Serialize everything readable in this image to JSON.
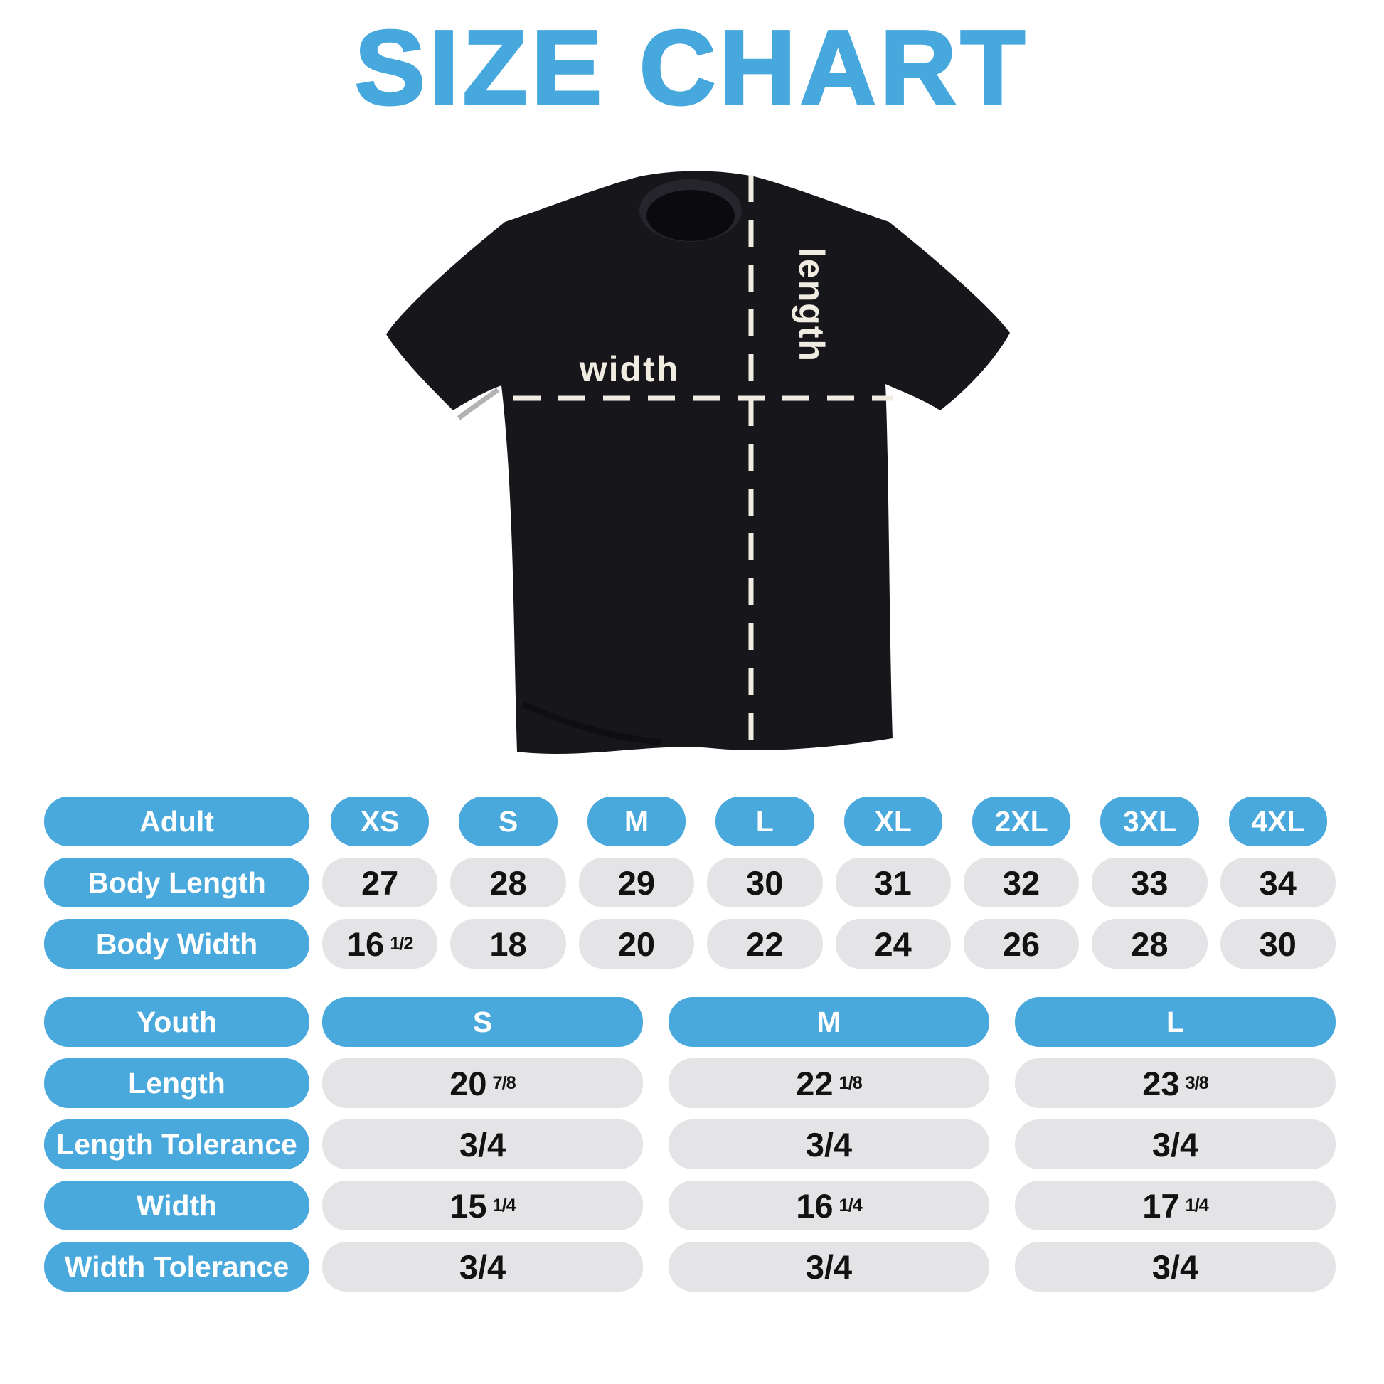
{
  "title": "SIZE CHART",
  "colors": {
    "accent_blue": "#49a8dc",
    "title_blue": "#47a8dd",
    "pill_gray": "#e4e4e6",
    "value_text": "#121212",
    "shirt_black": "#17161b",
    "measure_cream": "#f1ece2"
  },
  "shirt_diagram": {
    "width_label": "width",
    "length_label": "length"
  },
  "adult_table": {
    "row_header": "Adult",
    "size_columns": [
      "XS",
      "S",
      "M",
      "L",
      "XL",
      "2XL",
      "3XL",
      "4XL"
    ],
    "rows": [
      {
        "label": "Body Length",
        "values": [
          [
            "27"
          ],
          [
            "28"
          ],
          [
            "29"
          ],
          [
            "30"
          ],
          [
            "31"
          ],
          [
            "32"
          ],
          [
            "33"
          ],
          [
            "34"
          ]
        ]
      },
      {
        "label": "Body Width",
        "values": [
          [
            "16",
            "1/2"
          ],
          [
            "18"
          ],
          [
            "20"
          ],
          [
            "22"
          ],
          [
            "24"
          ],
          [
            "26"
          ],
          [
            "28"
          ],
          [
            "30"
          ]
        ]
      }
    ]
  },
  "youth_table": {
    "row_header": "Youth",
    "size_columns": [
      "S",
      "M",
      "L"
    ],
    "rows": [
      {
        "label": "Length",
        "values": [
          [
            "20",
            "7/8"
          ],
          [
            "22",
            "1/8"
          ],
          [
            "23",
            "3/8"
          ]
        ]
      },
      {
        "label": "Length Tolerance",
        "values": [
          [
            "3/4"
          ],
          [
            "3/4"
          ],
          [
            "3/4"
          ]
        ]
      },
      {
        "label": "Width",
        "values": [
          [
            "15",
            "1/4"
          ],
          [
            "16",
            "1/4"
          ],
          [
            "17",
            "1/4"
          ]
        ]
      },
      {
        "label": "Width Tolerance",
        "values": [
          [
            "3/4"
          ],
          [
            "3/4"
          ],
          [
            "3/4"
          ]
        ]
      }
    ]
  },
  "chart_data": [
    {
      "type": "table",
      "title": "Adult sizes",
      "columns": [
        "Adult",
        "XS",
        "S",
        "M",
        "L",
        "XL",
        "2XL",
        "3XL",
        "4XL"
      ],
      "rows": [
        [
          "Body Length",
          "27",
          "28",
          "29",
          "30",
          "31",
          "32",
          "33",
          "34"
        ],
        [
          "Body Width",
          "16 1/2",
          "18",
          "20",
          "22",
          "24",
          "26",
          "28",
          "30"
        ]
      ]
    },
    {
      "type": "table",
      "title": "Youth sizes",
      "columns": [
        "Youth",
        "S",
        "M",
        "L"
      ],
      "rows": [
        [
          "Length",
          "20 7/8",
          "22 1/8",
          "23 3/8"
        ],
        [
          "Length Tolerance",
          "3/4",
          "3/4",
          "3/4"
        ],
        [
          "Width",
          "15 1/4",
          "16 1/4",
          "17 1/4"
        ],
        [
          "Width Tolerance",
          "3/4",
          "3/4",
          "3/4"
        ]
      ]
    }
  ]
}
